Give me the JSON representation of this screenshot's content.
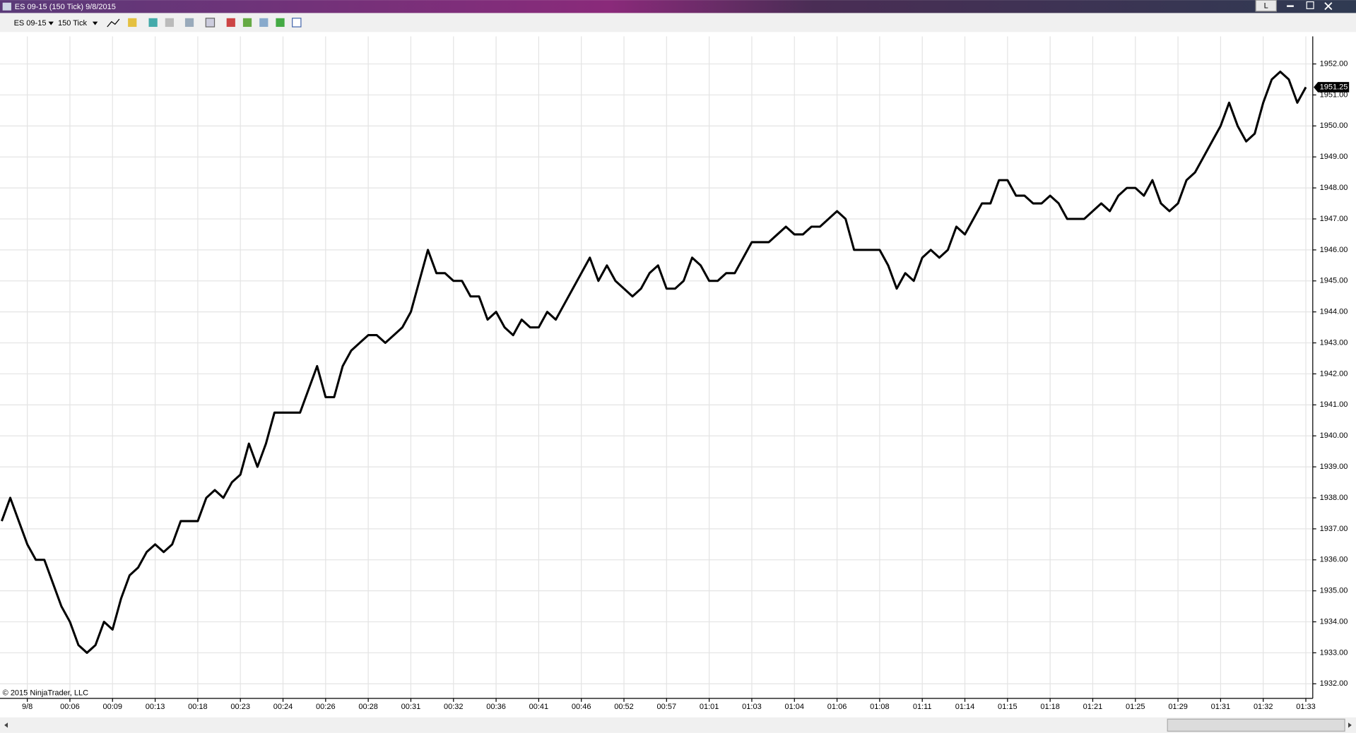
{
  "window": {
    "title": "ES 09-15 (150 Tick)  9/8/2015",
    "button": "L",
    "instrument": "ES 09-15",
    "interval": "150 Tick",
    "copyright": "© 2015 NinjaTrader, LLC"
  },
  "chart_data": {
    "type": "line",
    "color": "#000000",
    "grid": true,
    "categories": [
      null,
      null,
      null,
      "9/8",
      null,
      null,
      null,
      null,
      "00:06",
      null,
      null,
      null,
      null,
      "00:09",
      null,
      null,
      null,
      null,
      "00:13",
      null,
      null,
      null,
      null,
      "00:18",
      null,
      null,
      null,
      null,
      "00:23",
      null,
      null,
      null,
      null,
      "00:24",
      null,
      null,
      null,
      null,
      "00:26",
      null,
      null,
      null,
      null,
      "00:28",
      null,
      null,
      null,
      null,
      "00:31",
      null,
      null,
      null,
      null,
      "00:32",
      null,
      null,
      null,
      null,
      "00:36",
      null,
      null,
      null,
      null,
      "00:41",
      null,
      null,
      null,
      null,
      "00:46",
      null,
      null,
      null,
      null,
      "00:52",
      null,
      null,
      null,
      null,
      "00:57",
      null,
      null,
      null,
      null,
      "01:01",
      null,
      null,
      null,
      null,
      "01:03",
      null,
      null,
      null,
      null,
      "01:04",
      null,
      null,
      null,
      null,
      "01:06",
      null,
      null,
      null,
      null,
      "01:08",
      null,
      null,
      null,
      null,
      "01:11",
      null,
      null,
      null,
      null,
      "01:14",
      null,
      null,
      null,
      null,
      "01:15",
      null,
      null,
      null,
      null,
      "01:18",
      null,
      null,
      null,
      null,
      "01:21",
      null,
      null,
      null,
      null,
      "01:25",
      null,
      null,
      null,
      null,
      "01:29",
      null,
      null,
      null,
      null,
      "01:31",
      null,
      null,
      null,
      null,
      "01:32",
      null,
      null,
      null,
      null,
      "01:33"
    ],
    "values": [
      1937.25,
      1938,
      1937.25,
      1936.5,
      1936,
      1936,
      1935.25,
      1934.5,
      1934,
      1933.25,
      1933,
      1933.25,
      1934,
      1933.75,
      1934.75,
      1935.5,
      1935.75,
      1936.25,
      1936.5,
      1936.25,
      1936.5,
      1937.25,
      1937.25,
      1937.25,
      1938,
      1938.25,
      1938,
      1938.5,
      1938.75,
      1939.75,
      1939,
      1939.75,
      1940.75,
      1940.75,
      1940.75,
      1940.75,
      1941.5,
      1942.25,
      1941.25,
      1941.25,
      1942.25,
      1942.75,
      1943,
      1943.25,
      1943.25,
      1943,
      1943.25,
      1943.5,
      1944,
      1945,
      1946,
      1945.25,
      1945.25,
      1945,
      1945,
      1944.5,
      1944.5,
      1943.75,
      1944,
      1943.5,
      1943.25,
      1943.75,
      1943.5,
      1943.5,
      1944,
      1943.75,
      1944.25,
      1944.75,
      1945.25,
      1945.75,
      1945,
      1945.5,
      1945,
      1944.75,
      1944.5,
      1944.75,
      1945.25,
      1945.5,
      1944.75,
      1944.75,
      1945,
      1945.75,
      1945.5,
      1945,
      1945,
      1945.25,
      1945.25,
      1945.75,
      1946.25,
      1946.25,
      1946.25,
      1946.5,
      1946.75,
      1946.5,
      1946.5,
      1946.75,
      1946.75,
      1947,
      1947.25,
      1947,
      1946,
      1946,
      1946,
      1946,
      1945.5,
      1944.75,
      1945.25,
      1945,
      1945.75,
      1946,
      1945.75,
      1946,
      1946.75,
      1946.5,
      1947,
      1947.5,
      1947.5,
      1948.25,
      1948.25,
      1947.75,
      1947.75,
      1947.5,
      1947.5,
      1947.75,
      1947.5,
      1947,
      1947,
      1947,
      1947.25,
      1947.5,
      1947.25,
      1947.75,
      1948,
      1948,
      1947.75,
      1948.25,
      1947.5,
      1947.25,
      1947.5,
      1948.25,
      1948.5,
      1949,
      1949.5,
      1950,
      1950.75,
      1950,
      1949.5,
      1949.75,
      1950.75,
      1951.5,
      1951.75,
      1951.5,
      1950.75,
      1951.25
    ],
    "ylim": [
      1931.53,
      1952.89
    ],
    "yticks": [
      {
        "value": 1932,
        "label": "1932.00"
      },
      {
        "value": 1933,
        "label": "1933.00"
      },
      {
        "value": 1934,
        "label": "1934.00"
      },
      {
        "value": 1935,
        "label": "1935.00"
      },
      {
        "value": 1936,
        "label": "1936.00"
      },
      {
        "value": 1937,
        "label": "1937.00"
      },
      {
        "value": 1938,
        "label": "1938.00"
      },
      {
        "value": 1939,
        "label": "1939.00"
      },
      {
        "value": 1940,
        "label": "1940.00"
      },
      {
        "value": 1941,
        "label": "1941.00"
      },
      {
        "value": 1942,
        "label": "1942.00"
      },
      {
        "value": 1943,
        "label": "1943.00"
      },
      {
        "value": 1944,
        "label": "1944.00"
      },
      {
        "value": 1945,
        "label": "1945.00"
      },
      {
        "value": 1946,
        "label": "1946.00"
      },
      {
        "value": 1947,
        "label": "1947.00"
      },
      {
        "value": 1948,
        "label": "1948.00"
      },
      {
        "value": 1949,
        "label": "1949.00"
      },
      {
        "value": 1950,
        "label": "1950.00"
      },
      {
        "value": 1951,
        "label": "1951.00"
      },
      {
        "value": 1952,
        "label": "1952.00"
      }
    ]
  }
}
